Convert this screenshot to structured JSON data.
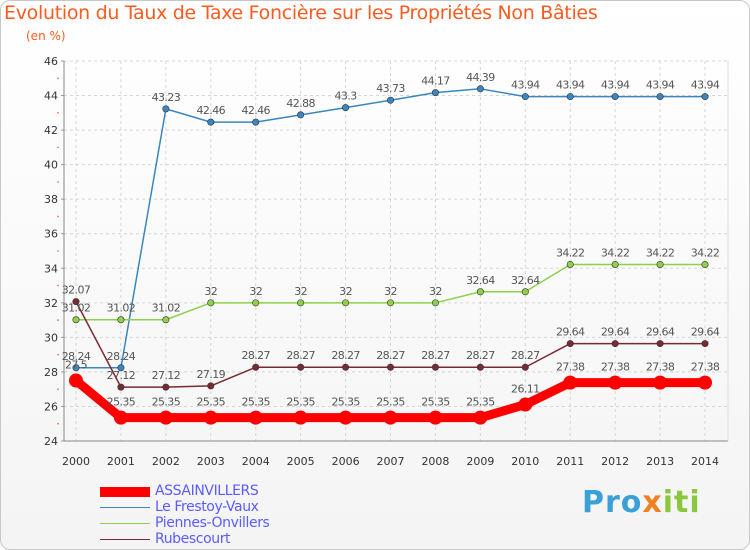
{
  "chart_data": {
    "type": "line",
    "title": "Evolution du Taux de Taxe Foncière sur les Propriétés Non Bâties",
    "ylabel": "(en %)",
    "xlabel": "",
    "ylim": [
      24,
      46
    ],
    "yticks": [
      "24",
      "26",
      "28",
      "30",
      "32",
      "34",
      "36",
      "38",
      "40",
      "42",
      "44",
      "46"
    ],
    "categories": [
      "2000",
      "2001",
      "2002",
      "2003",
      "2004",
      "2005",
      "2006",
      "2007",
      "2008",
      "2009",
      "2010",
      "2011",
      "2012",
      "2013",
      "2014"
    ],
    "series": [
      {
        "name": "Le Frestoy-Vaux",
        "color": "#3a86c0",
        "values": [
          28.24,
          28.24,
          43.23,
          42.46,
          42.46,
          42.88,
          43.3,
          43.73,
          44.17,
          44.39,
          43.94,
          43.94,
          43.94,
          43.94,
          43.94
        ],
        "labels": [
          "28.24",
          "28.24",
          "43.23",
          "42.46",
          "42.46",
          "42.88",
          "43.3",
          "43.73",
          "44.17",
          "44.39",
          "43.94",
          "43.94",
          "43.94",
          "43.94",
          "43.94"
        ]
      },
      {
        "name": "Piennes-Onvillers",
        "color": "#8ed04a",
        "values": [
          31.02,
          31.02,
          31.02,
          32,
          32,
          32,
          32,
          32,
          32,
          32.64,
          32.64,
          34.22,
          34.22,
          34.22,
          34.22
        ],
        "labels": [
          "31.02",
          "31.02",
          "31.02",
          "32",
          "32",
          "32",
          "32",
          "32",
          "32",
          "32.64",
          "32.64",
          "34.22",
          "34.22",
          "34.22",
          "34.22"
        ]
      },
      {
        "name": "Rubescourt",
        "color": "#7a2a32",
        "values": [
          32.07,
          27.12,
          27.12,
          27.19,
          28.27,
          28.27,
          28.27,
          28.27,
          28.27,
          28.27,
          28.27,
          29.64,
          29.64,
          29.64,
          29.64
        ],
        "labels": [
          "32.07",
          "27.12",
          "27.12",
          "27.19",
          "28.27",
          "28.27",
          "28.27",
          "28.27",
          "28.27",
          "28.27",
          "28.27",
          "29.64",
          "29.64",
          "29.64",
          "29.64"
        ]
      },
      {
        "name": "ASSAINVILLERS",
        "color": "#ff0000",
        "values": [
          27.5,
          25.35,
          25.35,
          25.35,
          25.35,
          25.35,
          25.35,
          25.35,
          25.35,
          25.35,
          26.11,
          27.38,
          27.38,
          27.38,
          27.38
        ],
        "labels": [
          "27.5",
          "25.35",
          "25.35",
          "25.35",
          "25.35",
          "25.35",
          "25.35",
          "25.35",
          "25.35",
          "25.35",
          "26.11",
          "27.38",
          "27.38",
          "27.38",
          "27.38"
        ]
      }
    ],
    "legend": [
      "ASSAINVILLERS",
      "Le Frestoy-Vaux",
      "Piennes-Onvillers",
      "Rubescourt"
    ],
    "legend_colors": [
      "#ff0000",
      "#3a86c0",
      "#8ed04a",
      "#7a2a32"
    ],
    "grid": true,
    "legend_position": "bottom-left"
  },
  "brand": {
    "part1": "Pro",
    "part2": "x",
    "part3": "iti"
  }
}
